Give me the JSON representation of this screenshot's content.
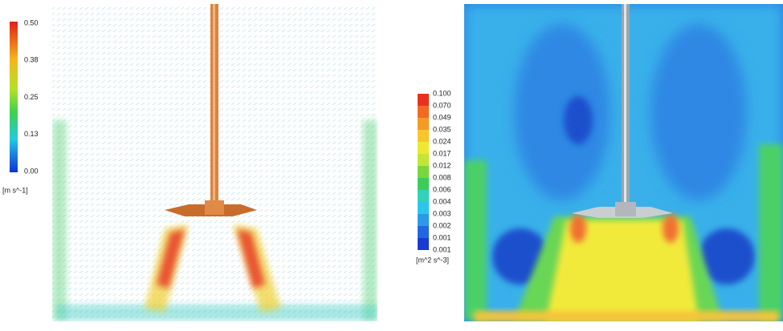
{
  "left_panel": {
    "colorbar": {
      "labels": [
        "0.50",
        "0.38",
        "0.25",
        "0.13",
        "0.00"
      ],
      "unit": "[m s^-1]"
    }
  },
  "right_panel": {
    "colorbar": {
      "labels": [
        "0.100",
        "0.070",
        "0.049",
        "0.035",
        "0.024",
        "0.017",
        "0.012",
        "0.008",
        "0.006",
        "0.004",
        "0.003",
        "0.002",
        "0.001",
        "0.001"
      ],
      "unit": "[m^2 s^-3]"
    }
  }
}
